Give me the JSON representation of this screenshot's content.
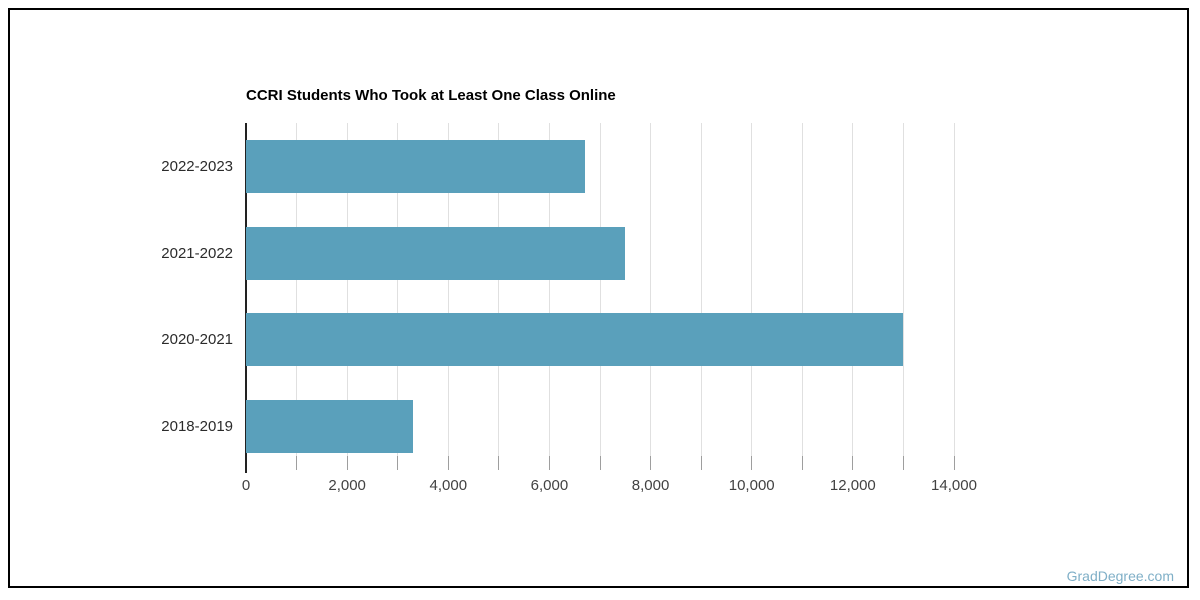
{
  "page": {
    "watermark": "GradDegree.com"
  },
  "chart_data": {
    "type": "bar",
    "orientation": "horizontal",
    "title": "CCRI Students Who Took at Least One Class Online",
    "categories": [
      "2022-2023",
      "2021-2022",
      "2020-2021",
      "2018-2019"
    ],
    "values": [
      6700,
      7500,
      13000,
      3300
    ],
    "xlabel": "",
    "ylabel": "",
    "xlim": [
      0,
      14000
    ],
    "x_minor_tick_step": 1000,
    "x_label_step": 2000,
    "x_tick_labels": [
      "0",
      "2,000",
      "4,000",
      "6,000",
      "8,000",
      "10,000",
      "12,000",
      "14,000"
    ],
    "grid": true,
    "legend": false,
    "colors": {
      "bar": "#5AA0BB",
      "gridline": "#e0e0e0",
      "axis": "#222222",
      "tick": "#9e9e9e",
      "title_text": "#000000",
      "axis_text": "#424242",
      "category_text": "#2b2b2b",
      "watermark_text": "#7FAFC7",
      "border": "#000000",
      "background": "#ffffff"
    }
  }
}
